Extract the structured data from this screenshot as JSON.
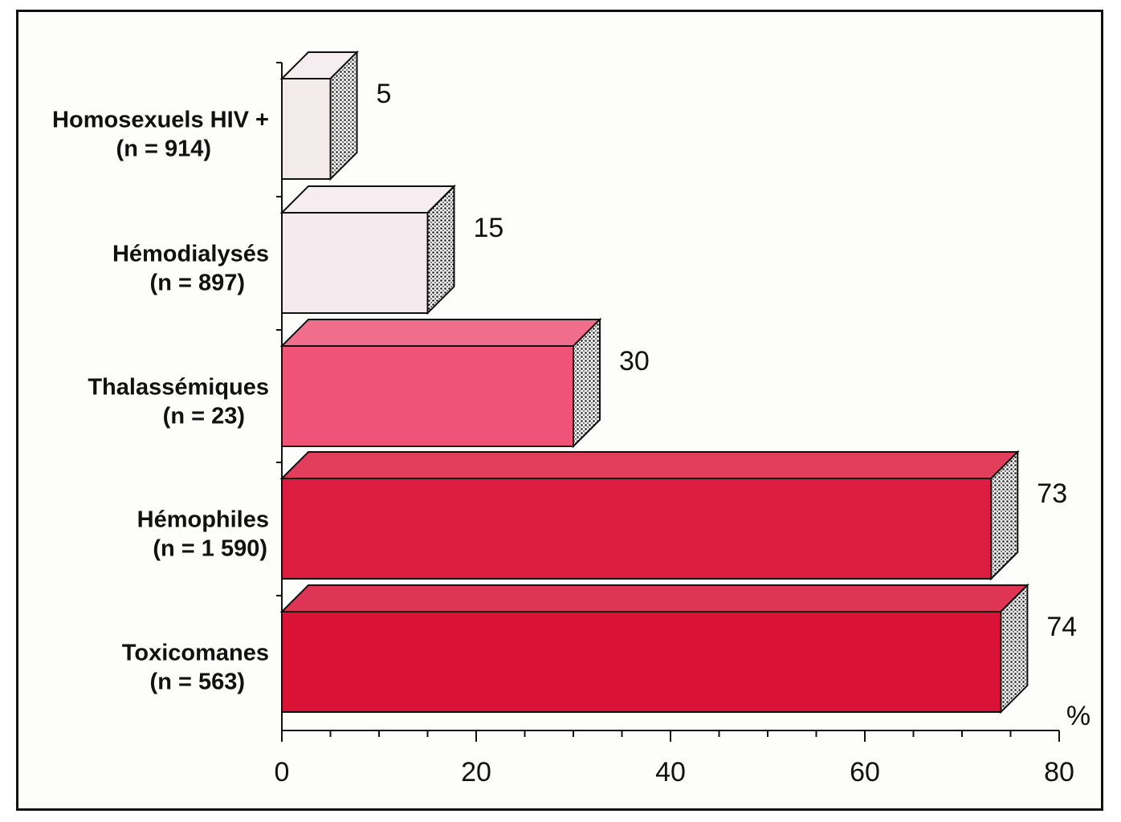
{
  "chart_data": {
    "type": "bar",
    "orientation": "horizontal",
    "categories": [
      [
        "Homosexuels HIV +",
        "(n = 914)"
      ],
      [
        "Hémodialysés",
        "(n = 897)"
      ],
      [
        "Thalassémiques",
        "(n = 23)"
      ],
      [
        "Hémophiles",
        "(n = 1 590)"
      ],
      [
        "Toxicomanes",
        "(n = 563)"
      ]
    ],
    "values": [
      5,
      15,
      30,
      73,
      74
    ],
    "bar_colors": [
      "#f3eaec",
      "#f5eaee",
      "#ef5478",
      "#dc1c40",
      "#d91236"
    ],
    "xlim": [
      0,
      80
    ],
    "xticks": [
      0,
      20,
      40,
      60,
      80
    ],
    "unit": "%",
    "grid": false,
    "style": "3d"
  }
}
